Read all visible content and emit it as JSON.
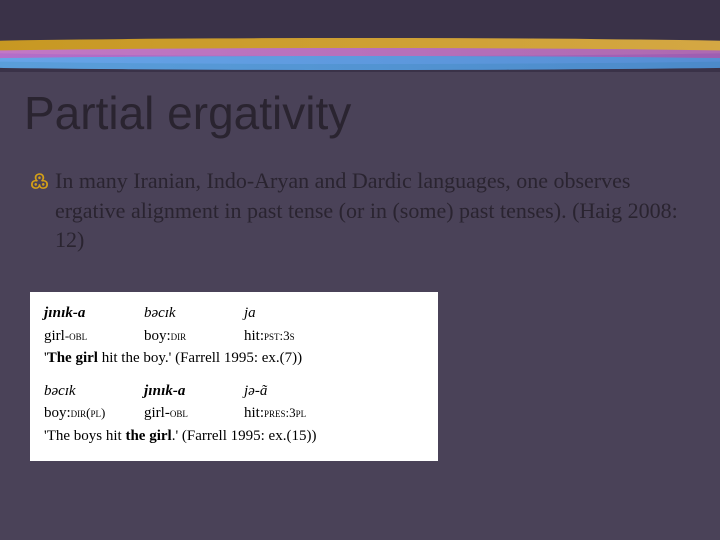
{
  "title": "Partial ergativity",
  "bullet_text": "In many Iranian, Indo-Aryan and Dardic languages, one observes ergative alignment in past tense (or in (some) past tenses). (Haig 2008: 12)",
  "example1": {
    "line1": {
      "c1": "jɪnɪk-a",
      "c2": "bəcɪk",
      "c3": "ja"
    },
    "line2": {
      "c1a": "girl",
      "c1b": "-obl",
      "c2a": "boy:",
      "c2b": "dir",
      "c3a": "hit:",
      "c3b": "pst",
      "c3c": ":3s"
    },
    "trans_prefix": "'",
    "trans_bold": "The girl",
    "trans_rest": " hit the boy.' (Farrell 1995: ex.(7))"
  },
  "example2": {
    "line1": {
      "c1": "bəcɪk",
      "c2": "jɪnɪk-a",
      "c3": "jə-ã"
    },
    "line2": {
      "c1a": "boy:",
      "c1b": "dir(pl)",
      "c2a": "girl-",
      "c2b": "obl",
      "c3a": "hit:",
      "c3b": "pres",
      "c3c": ":3pl"
    },
    "trans_prefix": "'The boys hit ",
    "trans_bold": "the girl",
    "trans_rest": ".' (Farrell 1995: ex.(15))"
  }
}
